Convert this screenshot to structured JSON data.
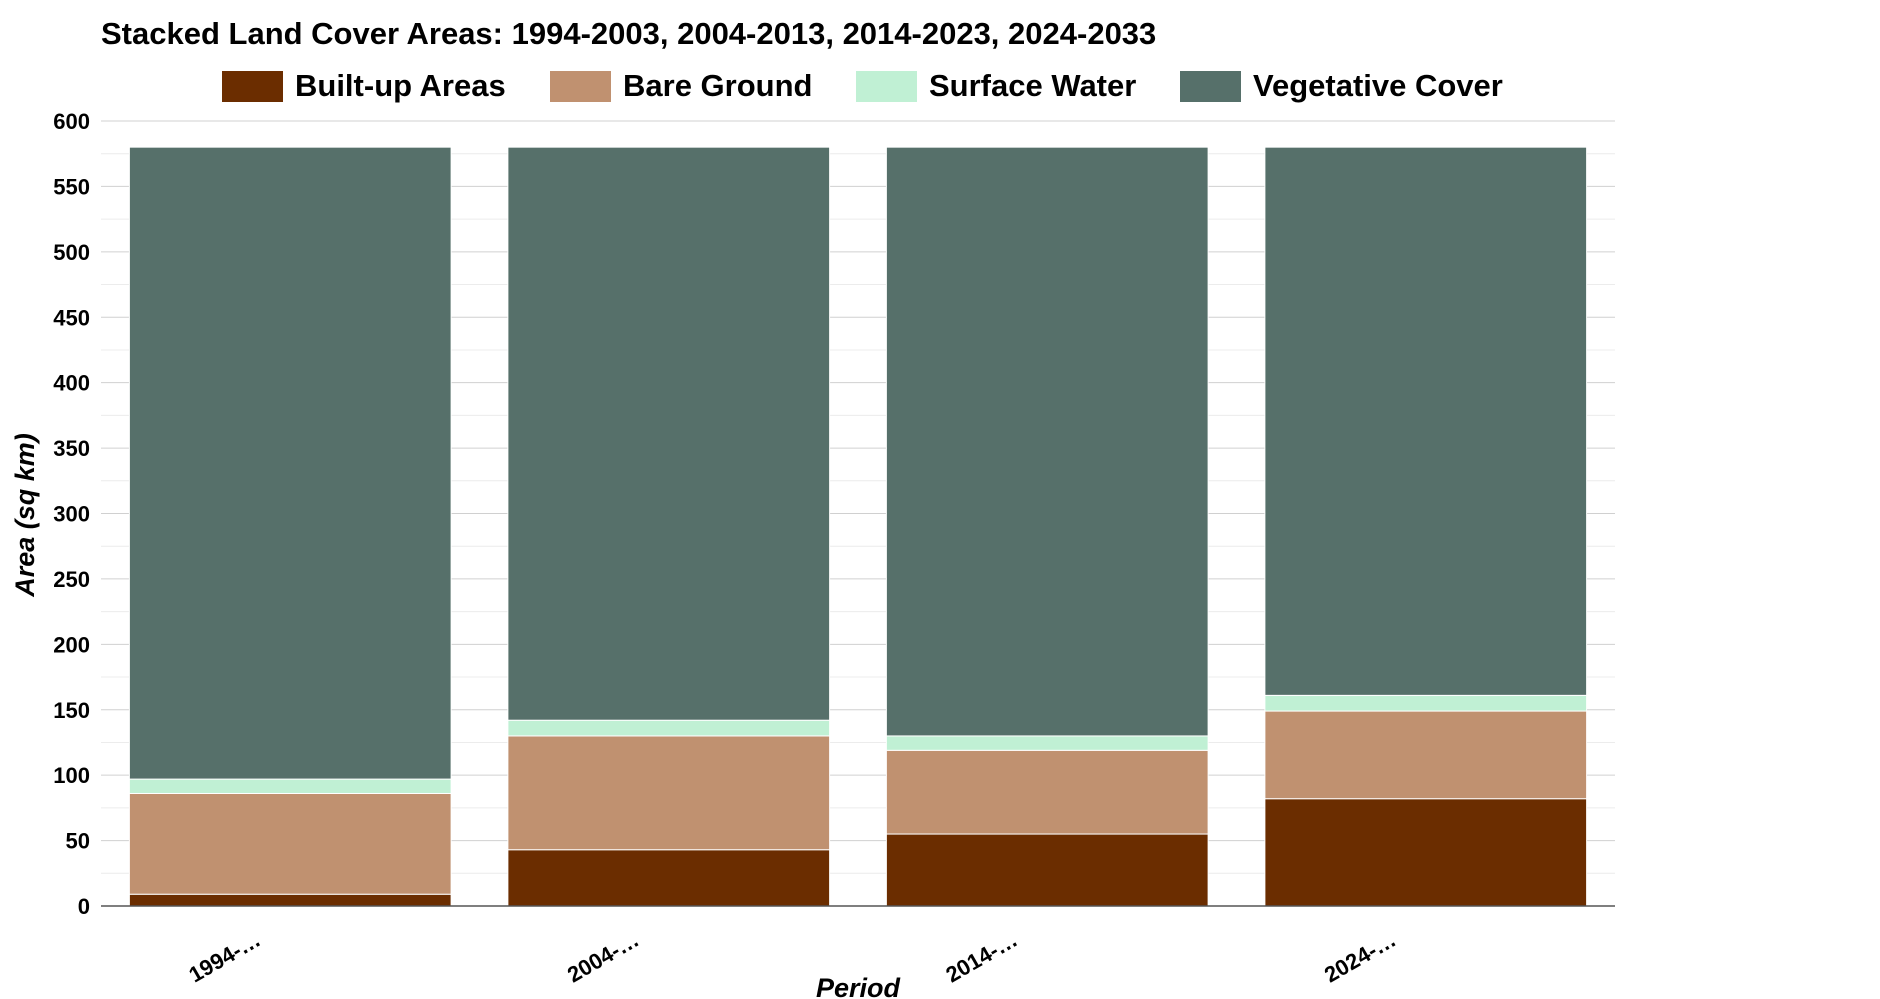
{
  "chart_data": {
    "type": "bar",
    "stacked": true,
    "title": "Stacked Land Cover Areas: 1994-2003, 2004-2013, 2014-2023, 2024-2033",
    "xlabel": "Period",
    "ylabel": "Area (sq km)",
    "categories": [
      "1994-…",
      "2004-…",
      "2014-…",
      "2024-…"
    ],
    "ylim": [
      0,
      600
    ],
    "yticks": [
      "0",
      "50",
      "100",
      "150",
      "200",
      "250",
      "300",
      "350",
      "400",
      "450",
      "500",
      "550",
      "600"
    ],
    "grid": true,
    "legend_position": "top",
    "series": [
      {
        "name": "Built-up Areas",
        "color": "#6b2d00",
        "values": [
          9,
          43,
          55,
          82
        ]
      },
      {
        "name": "Bare Ground",
        "color": "#c09170",
        "values": [
          77,
          87,
          64,
          67
        ]
      },
      {
        "name": "Surface Water",
        "color": "#c0f0d4",
        "values": [
          11,
          12,
          11,
          12
        ]
      },
      {
        "name": "Vegetative Cover",
        "color": "#56706a",
        "values": [
          483,
          438,
          450,
          419
        ]
      }
    ]
  }
}
